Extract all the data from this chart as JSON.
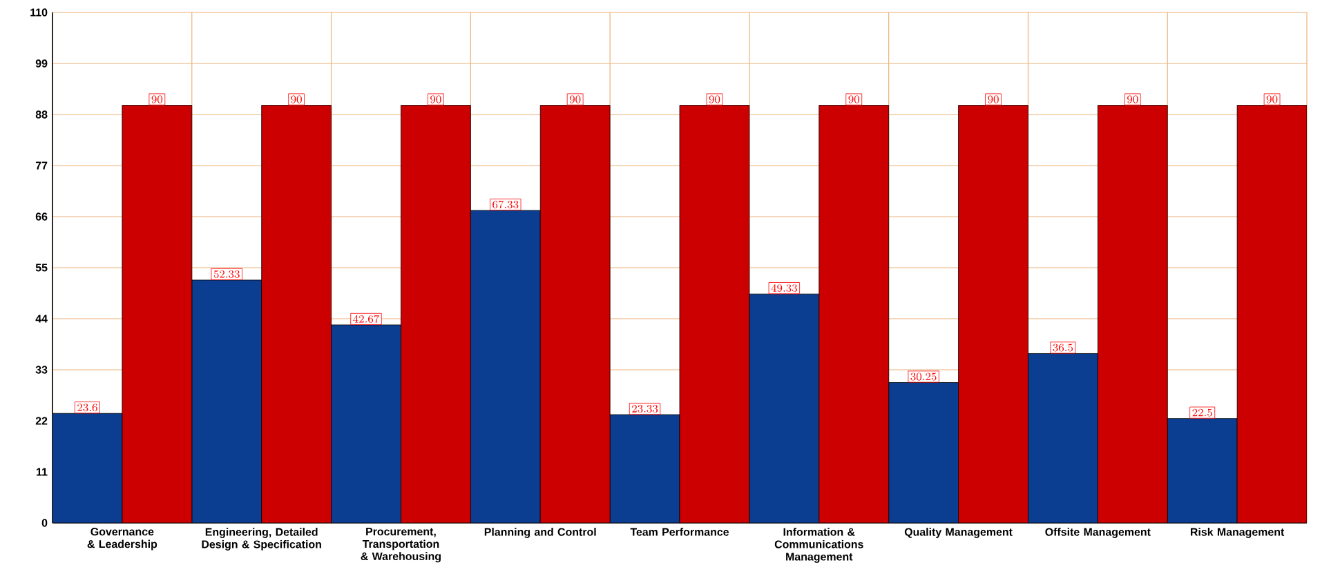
{
  "chart_data": {
    "type": "bar",
    "categories": [
      "Governance & Leadership",
      "Engineering, Detailed Design & Specification",
      "Procurement, Transportation & Warehousing",
      "Planning and Control",
      "Team Performance",
      "Information & Communications Management",
      "Quality Management",
      "Offsite Management",
      "Risk Management"
    ],
    "series": [
      {
        "color": "#0b3d91",
        "values": [
          23.6,
          52.33,
          42.67,
          67.33,
          23.33,
          49.33,
          30.25,
          36.5,
          22.5
        ]
      },
      {
        "color": "#cc0000",
        "values": [
          90,
          90,
          90,
          90,
          90,
          90,
          90,
          90,
          90
        ]
      }
    ],
    "ylim": [
      0,
      110
    ],
    "yticks": [
      0,
      11,
      22,
      33,
      44,
      55,
      66,
      77,
      88,
      99,
      110
    ],
    "grid": true,
    "data_labels": true
  }
}
